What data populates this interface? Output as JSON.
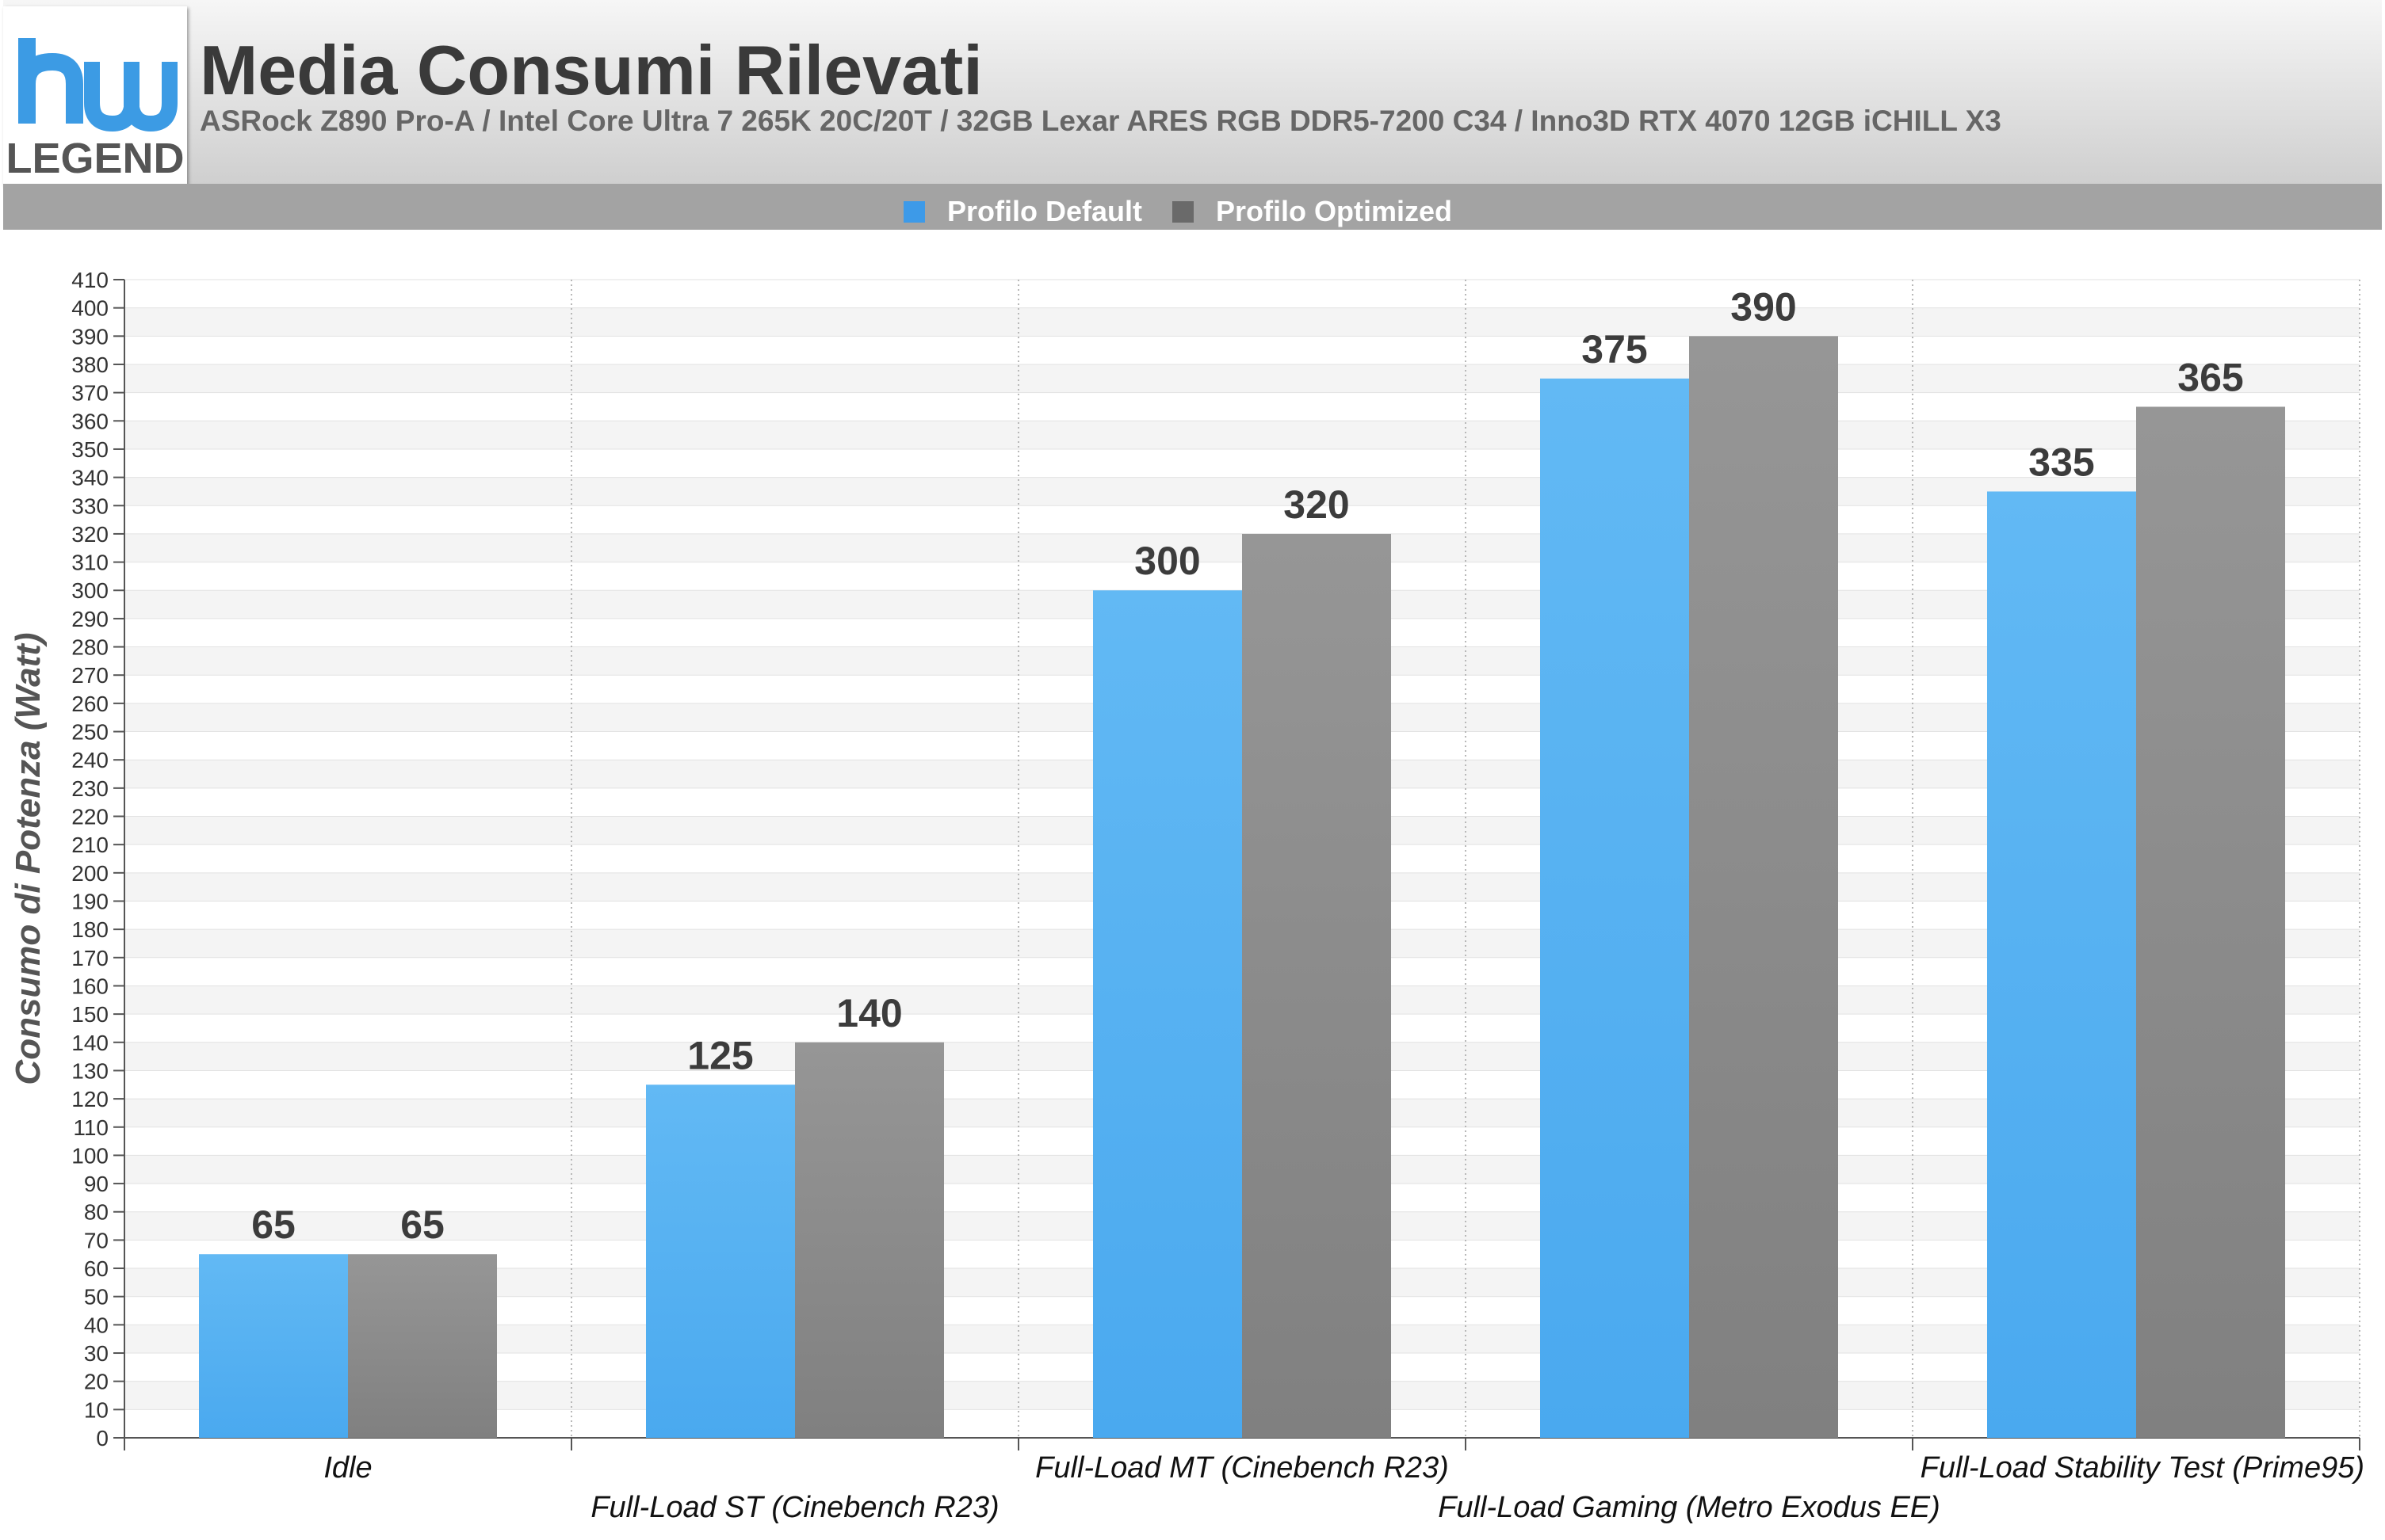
{
  "header": {
    "logo_top": "hw",
    "logo_bottom": "LEGEND",
    "title": "Media Consumi Rilevati",
    "subtitle": "ASRock Z890 Pro-A / Intel Core Ultra 7 265K 20C/20T / 32GB Lexar ARES RGB DDR5-7200 C34 / Inno3D RTX 4070 12GB iCHILL X3"
  },
  "colors": {
    "default": "#4aa9ef",
    "optimized": "#808080",
    "legend_default": "#3d9ae8",
    "legend_optimized": "#6a6a6a",
    "logo_blue": "#3c9be4",
    "logo_text": "#555555"
  },
  "chart_data": {
    "type": "bar",
    "title": "Media Consumi Rilevati",
    "subtitle": "ASRock Z890 Pro-A / Intel Core Ultra 7 265K 20C/20T / 32GB Lexar ARES RGB DDR5-7200 C34 / Inno3D RTX 4070 12GB iCHILL X3",
    "ylabel": "Consumo di Potenza (Watt)",
    "xlabel": "",
    "ylim": [
      0,
      410
    ],
    "ytick_step": 10,
    "grid": true,
    "legend_position": "top-center",
    "categories": [
      "Idle",
      "Full-Load ST (Cinebench R23)",
      "Full-Load MT (Cinebench R23)",
      "Full-Load Gaming (Metro Exodus EE)",
      "Full-Load Stability Test (Prime95)"
    ],
    "series": [
      {
        "name": "Profilo Default",
        "values": [
          65,
          125,
          300,
          375,
          335
        ]
      },
      {
        "name": "Profilo Optimized",
        "values": [
          65,
          140,
          320,
          390,
          365
        ]
      }
    ]
  }
}
